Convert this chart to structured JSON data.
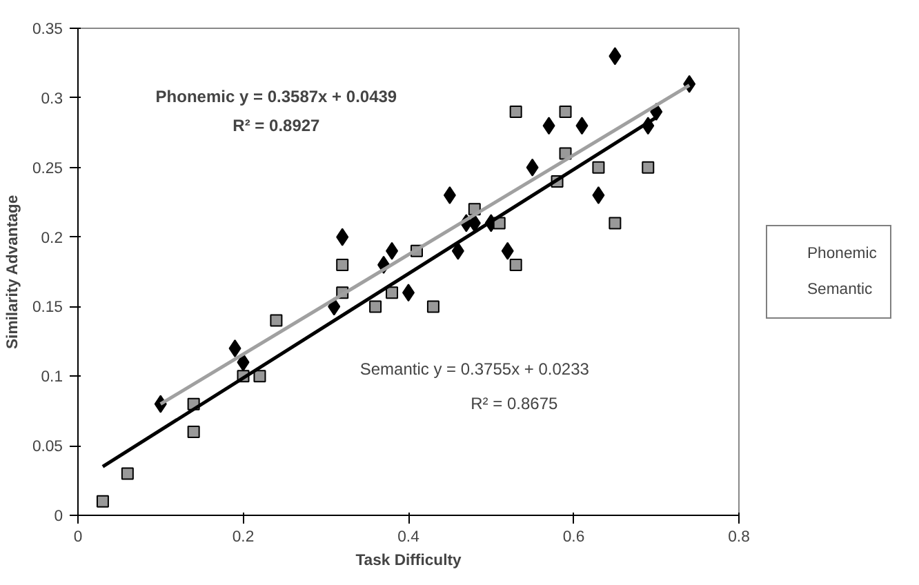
{
  "chart_data": {
    "type": "scatter",
    "xlabel": "Task Difficulty",
    "ylabel": "Similarity Advantage",
    "xlim": [
      0,
      0.8
    ],
    "ylim": [
      0,
      0.35
    ],
    "xticks": [
      0,
      0.2,
      0.4,
      0.6,
      0.8
    ],
    "yticks": [
      0,
      0.05,
      0.1,
      0.15,
      0.2,
      0.25,
      0.3,
      0.35
    ],
    "grid": false,
    "legend": "right",
    "series": [
      {
        "name": "Phonemic",
        "marker": "diamond",
        "color": "#000000",
        "x": [
          0.1,
          0.19,
          0.2,
          0.31,
          0.32,
          0.37,
          0.38,
          0.4,
          0.45,
          0.46,
          0.47,
          0.48,
          0.5,
          0.52,
          0.55,
          0.57,
          0.61,
          0.63,
          0.65,
          0.69,
          0.7,
          0.74
        ],
        "values": [
          0.08,
          0.12,
          0.11,
          0.15,
          0.2,
          0.18,
          0.19,
          0.16,
          0.23,
          0.19,
          0.21,
          0.21,
          0.21,
          0.19,
          0.25,
          0.28,
          0.28,
          0.23,
          0.33,
          0.28,
          0.29,
          0.31
        ]
      },
      {
        "name": "Semantic",
        "marker": "square",
        "color": "#999999",
        "x": [
          0.03,
          0.06,
          0.14,
          0.14,
          0.2,
          0.22,
          0.24,
          0.32,
          0.32,
          0.36,
          0.38,
          0.41,
          0.43,
          0.48,
          0.51,
          0.53,
          0.53,
          0.58,
          0.59,
          0.59,
          0.63,
          0.65,
          0.69
        ],
        "values": [
          0.01,
          0.03,
          0.06,
          0.08,
          0.1,
          0.1,
          0.14,
          0.16,
          0.18,
          0.15,
          0.16,
          0.19,
          0.15,
          0.22,
          0.21,
          0.18,
          0.29,
          0.24,
          0.26,
          0.29,
          0.25,
          0.21,
          0.25
        ]
      },
      {
        "type": "line",
        "marker": "none",
        "color": "#a0a0a0",
        "x": [
          0.1,
          0.74
        ],
        "values": [
          0.08,
          0.309
        ]
      },
      {
        "type": "line",
        "marker": "none",
        "color": "#000000",
        "x": [
          0.03,
          0.7
        ],
        "values": [
          0.035,
          0.286
        ]
      }
    ],
    "annotations": [
      "Phonemic y = 0.3587x + 0.0439",
      "R² = 0.8927",
      "Semantic y = 0.3755x + 0.0233",
      "R² = 0.8675"
    ]
  }
}
